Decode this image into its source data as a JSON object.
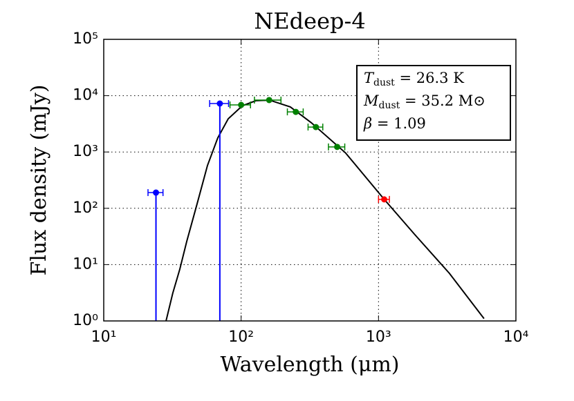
{
  "chart_data": {
    "type": "scatter",
    "title": "NEdeep-4",
    "x_label": "Wavelength (μm)",
    "y_label": "Flux density (mJy)",
    "log_x": true,
    "log_y": true,
    "grid": true,
    "xlim": [
      10,
      10000
    ],
    "ylim": [
      1,
      100000
    ],
    "xticks": [
      {
        "value": 10,
        "label": "10¹"
      },
      {
        "value": 100,
        "label": "10²"
      },
      {
        "value": 1000,
        "label": "10³"
      },
      {
        "value": 10000,
        "label": "10⁴"
      }
    ],
    "yticks": [
      {
        "value": 1,
        "label": "10⁰"
      },
      {
        "value": 10,
        "label": "10¹"
      },
      {
        "value": 100,
        "label": "10²"
      },
      {
        "value": 1000,
        "label": "10³"
      },
      {
        "value": 10000,
        "label": "10⁴"
      },
      {
        "value": 100000,
        "label": "10⁵"
      }
    ],
    "series": [
      {
        "kind": "line",
        "color": "#000000",
        "x": [
          28.4,
          31.8,
          35.8,
          40.2,
          47.8,
          56.9,
          67.6,
          80.5,
          102,
          128,
          161,
          228,
          324,
          577,
          1100,
          1840,
          3280,
          5860
        ],
        "values": [
          1,
          3.1,
          8.3,
          25.7,
          120,
          575,
          1780,
          3890,
          6610,
          8130,
          8320,
          6310,
          3310,
          955,
          144,
          34,
          7.0,
          1.1
        ]
      },
      {
        "kind": "points",
        "color": "#0000ff",
        "upper_limit": true,
        "x": [
          24,
          70
        ],
        "xerr": [
          3,
          11
        ],
        "values": [
          190,
          7250
        ]
      },
      {
        "kind": "points",
        "color": "#008000",
        "x": [
          100,
          160,
          250,
          350,
          500
        ],
        "xerr": [
          17,
          35,
          33,
          43,
          68
        ],
        "values": [
          6850,
          8350,
          5150,
          2770,
          1230
        ]
      },
      {
        "kind": "points",
        "color": "#ff0000",
        "x": [
          1100
        ],
        "xerr": [
          100
        ],
        "values": [
          144
        ]
      }
    ],
    "annotation": [
      {
        "var": "T",
        "sub": "dust",
        "rest": " = 26.3 K"
      },
      {
        "var": "M",
        "sub": "dust",
        "rest": " = 35.2 M⊙"
      },
      {
        "var": "β",
        "rest": " = 1.09"
      }
    ]
  }
}
